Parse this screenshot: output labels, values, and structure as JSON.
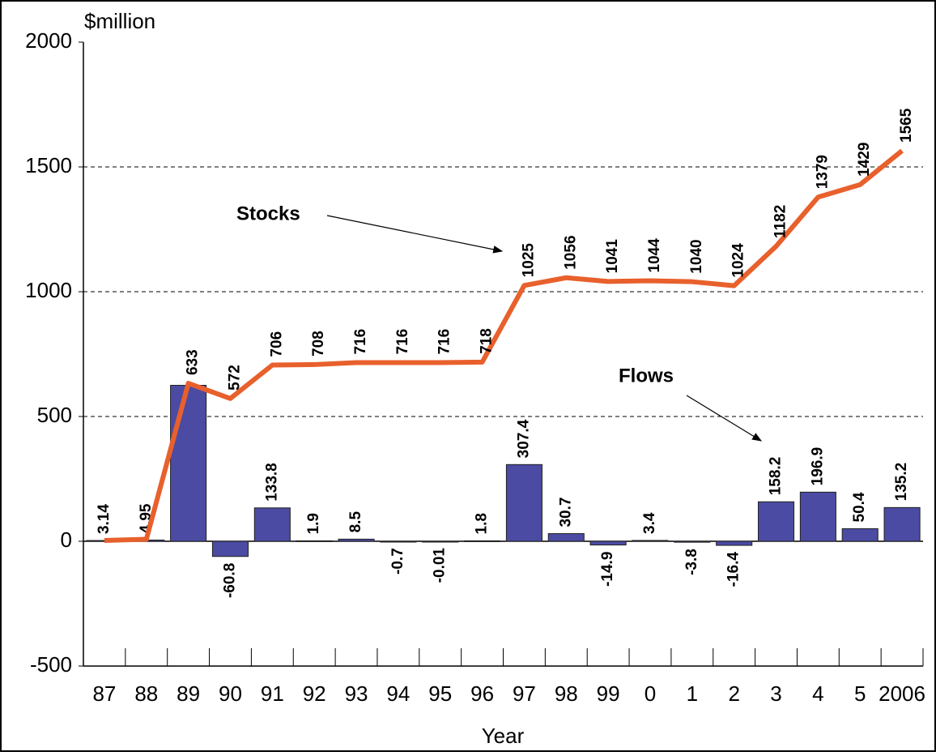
{
  "chart_data": {
    "type": "bar_line",
    "y_label": "$million",
    "x_label": "Year",
    "categories": [
      "87",
      "88",
      "89",
      "90",
      "91",
      "92",
      "93",
      "94",
      "95",
      "96",
      "97",
      "98",
      "99",
      "0",
      "1",
      "2",
      "3",
      "4",
      "5",
      "2006"
    ],
    "series": [
      {
        "name": "Flows",
        "type": "bar",
        "color": "#4b4ba3",
        "values": [
          3.14,
          4.95,
          625,
          -60.8,
          133.8,
          1.9,
          8.5,
          -0.7,
          -0.01,
          1.8,
          307.4,
          30.7,
          -14.9,
          3.4,
          -3.8,
          -16.4,
          158.2,
          196.9,
          50.4,
          135.2
        ],
        "value_labels": [
          "3.14",
          "4.95",
          null,
          "-60.8",
          "133.8",
          "1.9",
          "8.5",
          "-0.7",
          "-0.01",
          "1.8",
          "307.4",
          "30.7",
          "-14.9",
          "3.4",
          "-3.8",
          "-16.4",
          "158.2",
          "196.9",
          "50.4",
          "135.2"
        ]
      },
      {
        "name": "Stocks",
        "type": "line",
        "color": "#e8602c",
        "values": [
          3.14,
          8.09,
          633,
          572,
          706,
          708,
          716,
          716,
          716,
          718,
          1025,
          1056,
          1041,
          1044,
          1040,
          1024,
          1182,
          1379,
          1429,
          1565
        ],
        "value_labels": [
          null,
          null,
          "633",
          "572",
          "706",
          "708",
          "716",
          "716",
          "716",
          "718",
          "1025",
          "1056",
          "1041",
          "1044",
          "1040",
          "1024",
          "1182",
          "1379",
          "1429",
          "1565"
        ]
      }
    ],
    "annotations": [
      "Stocks",
      "Flows"
    ],
    "ylim": [
      -500,
      2000
    ],
    "yticks": [
      -500,
      0,
      500,
      1000,
      1500,
      2000
    ],
    "grid": true
  }
}
